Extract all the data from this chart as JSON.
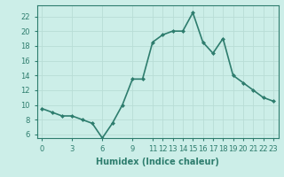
{
  "x": [
    0,
    1,
    2,
    3,
    4,
    5,
    6,
    7,
    8,
    9,
    10,
    11,
    12,
    13,
    14,
    15,
    16,
    17,
    18,
    19,
    20,
    21,
    22,
    23
  ],
  "y": [
    9.5,
    9.0,
    8.5,
    8.5,
    8.0,
    7.5,
    5.5,
    7.5,
    10.0,
    13.5,
    13.5,
    18.5,
    19.5,
    20.0,
    20.0,
    22.5,
    18.5,
    17.0,
    19.0,
    14.0,
    13.0,
    12.0,
    11.0,
    10.5
  ],
  "line_color": "#2e7d6e",
  "marker": "D",
  "marker_size": 2,
  "bg_color": "#cceee8",
  "grid_color": "#b8ddd6",
  "xlabel": "Humidex (Indice chaleur)",
  "xlim": [
    -0.5,
    23.5
  ],
  "ylim": [
    5.5,
    23.5
  ],
  "xticks": [
    0,
    3,
    6,
    9,
    11,
    12,
    13,
    14,
    15,
    16,
    17,
    18,
    19,
    20,
    21,
    22,
    23
  ],
  "yticks": [
    6,
    8,
    10,
    12,
    14,
    16,
    18,
    20,
    22
  ],
  "xlabel_fontsize": 7,
  "tick_fontsize": 6,
  "line_width": 1.2
}
